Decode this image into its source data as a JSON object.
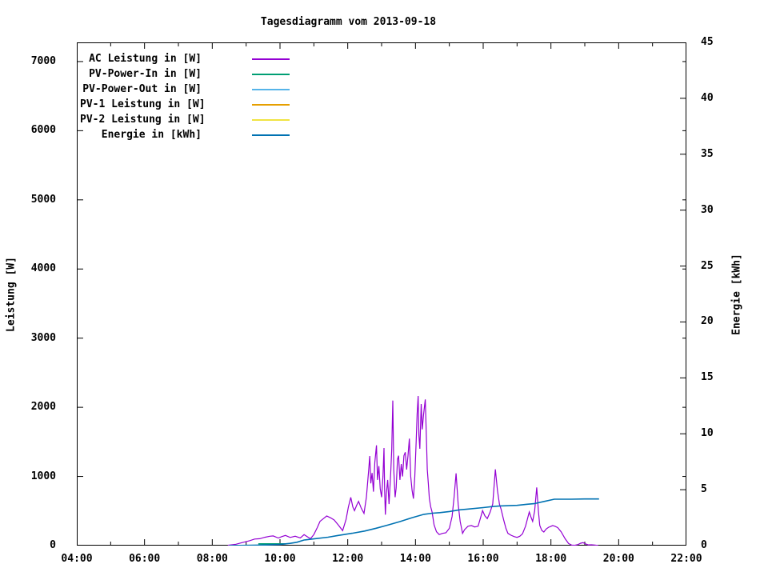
{
  "title": "Tagesdiagramm vom 2013-09-18",
  "axes": {
    "ylabel": "Leistung [W]",
    "y2label": "Energie [kWh]",
    "y_ticks": [
      0,
      1000,
      2000,
      3000,
      4000,
      5000,
      6000,
      7000
    ],
    "y_max": 7277,
    "y2_ticks": [
      0,
      5,
      10,
      15,
      20,
      25,
      30,
      35,
      40,
      45
    ],
    "y2_max": 45,
    "x_min": 4,
    "x_max": 22,
    "x_minor_step": 1,
    "x_tick_hours": [
      4,
      6,
      8,
      10,
      12,
      14,
      16,
      18,
      20,
      22
    ],
    "x_tick_labels": [
      "04:00",
      "06:00",
      "08:00",
      "10:00",
      "12:00",
      "14:00",
      "16:00",
      "18:00",
      "20:00",
      "22:00"
    ]
  },
  "legend": [
    {
      "label": "AC Leistung in [W]",
      "color": "#9400d3"
    },
    {
      "label": "PV-Power-In in [W]",
      "color": "#009e73"
    },
    {
      "label": "PV-Power-Out in [W]",
      "color": "#56b4e9"
    },
    {
      "label": "PV-1 Leistung in [W]",
      "color": "#e69f00"
    },
    {
      "label": "PV-2 Leistung in [W]",
      "color": "#f0e442"
    },
    {
      "label": "Energie in [kWh]",
      "color": "#0072b2"
    }
  ],
  "chart_data": {
    "type": "line",
    "title": "Tagesdiagramm vom 2013-09-18",
    "xlabel": "",
    "ylabel": "Leistung [W]",
    "y2label": "Energie [kWh]",
    "x_unit": "hour-of-day",
    "x_range": [
      4,
      22
    ],
    "y_range": [
      0,
      7277
    ],
    "y2_range": [
      0,
      45
    ],
    "grid": false,
    "legend_position": "top-left-inside",
    "series": [
      {
        "name": "PV-Power-In in [W]",
        "color": "#009e73",
        "axis": "y",
        "width": 1.6,
        "points": [
          [
            9.36,
            25
          ],
          [
            10.17,
            25
          ]
        ]
      },
      {
        "name": "AC Leistung in [W]",
        "color": "#9400d3",
        "axis": "y",
        "width": 1.2,
        "points": [
          [
            8.46,
            5
          ],
          [
            8.7,
            20
          ],
          [
            8.9,
            45
          ],
          [
            9.1,
            70
          ],
          [
            9.25,
            95
          ],
          [
            9.4,
            100
          ],
          [
            9.55,
            120
          ],
          [
            9.7,
            135
          ],
          [
            9.8,
            140
          ],
          [
            9.95,
            110
          ],
          [
            10.05,
            130
          ],
          [
            10.16,
            147
          ],
          [
            10.3,
            118
          ],
          [
            10.45,
            135
          ],
          [
            10.6,
            110
          ],
          [
            10.71,
            158
          ],
          [
            10.8,
            130
          ],
          [
            10.9,
            100
          ],
          [
            11.0,
            160
          ],
          [
            11.1,
            260
          ],
          [
            11.18,
            350
          ],
          [
            11.28,
            390
          ],
          [
            11.38,
            428
          ],
          [
            11.5,
            400
          ],
          [
            11.6,
            370
          ],
          [
            11.72,
            300
          ],
          [
            11.85,
            216
          ],
          [
            11.95,
            380
          ],
          [
            12.02,
            560
          ],
          [
            12.09,
            698
          ],
          [
            12.15,
            560
          ],
          [
            12.2,
            505
          ],
          [
            12.26,
            580
          ],
          [
            12.32,
            640
          ],
          [
            12.4,
            540
          ],
          [
            12.48,
            466
          ],
          [
            12.55,
            700
          ],
          [
            12.62,
            1100
          ],
          [
            12.65,
            1296
          ],
          [
            12.68,
            900
          ],
          [
            12.72,
            1050
          ],
          [
            12.76,
            780
          ],
          [
            12.8,
            1200
          ],
          [
            12.85,
            1450
          ],
          [
            12.88,
            950
          ],
          [
            12.92,
            1150
          ],
          [
            12.96,
            820
          ],
          [
            13.0,
            700
          ],
          [
            13.04,
            1000
          ],
          [
            13.07,
            1412
          ],
          [
            13.09,
            800
          ],
          [
            13.11,
            448
          ],
          [
            13.14,
            750
          ],
          [
            13.18,
            950
          ],
          [
            13.22,
            600
          ],
          [
            13.27,
            1050
          ],
          [
            13.3,
            1400
          ],
          [
            13.33,
            2098
          ],
          [
            13.36,
            1100
          ],
          [
            13.4,
            700
          ],
          [
            13.43,
            833
          ],
          [
            13.47,
            1250
          ],
          [
            13.5,
            1300
          ],
          [
            13.54,
            950
          ],
          [
            13.58,
            1180
          ],
          [
            13.62,
            1000
          ],
          [
            13.66,
            1300
          ],
          [
            13.7,
            1350
          ],
          [
            13.74,
            1100
          ],
          [
            13.78,
            1300
          ],
          [
            13.82,
            1547
          ],
          [
            13.86,
            1000
          ],
          [
            13.9,
            800
          ],
          [
            13.94,
            679
          ],
          [
            13.98,
            1000
          ],
          [
            14.02,
            1500
          ],
          [
            14.05,
            1900
          ],
          [
            14.08,
            2164
          ],
          [
            14.1,
            1600
          ],
          [
            14.13,
            1400
          ],
          [
            14.17,
            2048
          ],
          [
            14.2,
            1681
          ],
          [
            14.24,
            1900
          ],
          [
            14.29,
            2114
          ],
          [
            14.32,
            1600
          ],
          [
            14.35,
            1100
          ],
          [
            14.38,
            900
          ],
          [
            14.41,
            679
          ],
          [
            14.45,
            560
          ],
          [
            14.49,
            486
          ],
          [
            14.55,
            300
          ],
          [
            14.62,
            200
          ],
          [
            14.7,
            160
          ],
          [
            14.8,
            177
          ],
          [
            14.9,
            185
          ],
          [
            15.0,
            250
          ],
          [
            15.08,
            420
          ],
          [
            15.14,
            700
          ],
          [
            15.2,
            1045
          ],
          [
            15.26,
            600
          ],
          [
            15.32,
            350
          ],
          [
            15.39,
            177
          ],
          [
            15.45,
            230
          ],
          [
            15.55,
            280
          ],
          [
            15.65,
            290
          ],
          [
            15.75,
            270
          ],
          [
            15.85,
            280
          ],
          [
            15.92,
            400
          ],
          [
            15.98,
            505
          ],
          [
            16.05,
            430
          ],
          [
            16.12,
            390
          ],
          [
            16.2,
            480
          ],
          [
            16.28,
            600
          ],
          [
            16.36,
            1103
          ],
          [
            16.42,
            800
          ],
          [
            16.48,
            600
          ],
          [
            16.53,
            524
          ],
          [
            16.6,
            380
          ],
          [
            16.67,
            250
          ],
          [
            16.73,
            177
          ],
          [
            16.82,
            150
          ],
          [
            16.92,
            130
          ],
          [
            17.0,
            119
          ],
          [
            17.08,
            135
          ],
          [
            17.16,
            170
          ],
          [
            17.25,
            280
          ],
          [
            17.36,
            486
          ],
          [
            17.42,
            400
          ],
          [
            17.46,
            351
          ],
          [
            17.52,
            500
          ],
          [
            17.58,
            841
          ],
          [
            17.63,
            500
          ],
          [
            17.67,
            293
          ],
          [
            17.73,
            220
          ],
          [
            17.79,
            197
          ],
          [
            17.86,
            240
          ],
          [
            17.93,
            265
          ],
          [
            17.98,
            274
          ],
          [
            18.05,
            290
          ],
          [
            18.12,
            280
          ],
          [
            18.2,
            260
          ],
          [
            18.3,
            200
          ],
          [
            18.42,
            100
          ],
          [
            18.52,
            30
          ],
          [
            18.61,
            8
          ],
          [
            18.7,
            5
          ],
          [
            18.8,
            15
          ],
          [
            18.88,
            35
          ],
          [
            18.95,
            43
          ],
          [
            19.02,
            25
          ],
          [
            19.1,
            10
          ],
          [
            19.2,
            12
          ],
          [
            19.3,
            8
          ],
          [
            19.4,
            2
          ]
        ]
      },
      {
        "name": "Energie in [kWh]",
        "color": "#0072b2",
        "axis": "y2",
        "width": 1.6,
        "points": [
          [
            8.5,
            0
          ],
          [
            9.0,
            0.02
          ],
          [
            9.5,
            0.05
          ],
          [
            10.0,
            0.1
          ],
          [
            10.3,
            0.2
          ],
          [
            10.5,
            0.3
          ],
          [
            10.71,
            0.5
          ],
          [
            11.0,
            0.6
          ],
          [
            11.42,
            0.75
          ],
          [
            11.7,
            0.9
          ],
          [
            12.13,
            1.1
          ],
          [
            12.5,
            1.3
          ],
          [
            12.84,
            1.55
          ],
          [
            13.2,
            1.85
          ],
          [
            13.55,
            2.15
          ],
          [
            13.9,
            2.5
          ],
          [
            14.25,
            2.8
          ],
          [
            14.5,
            2.9
          ],
          [
            14.72,
            2.95
          ],
          [
            15.0,
            3.05
          ],
          [
            15.3,
            3.2
          ],
          [
            15.5,
            3.25
          ],
          [
            16.0,
            3.4
          ],
          [
            16.3,
            3.5
          ],
          [
            16.5,
            3.55
          ],
          [
            17.0,
            3.6
          ],
          [
            17.3,
            3.7
          ],
          [
            17.5,
            3.75
          ],
          [
            17.8,
            3.95
          ],
          [
            18.1,
            4.15
          ],
          [
            18.6,
            4.15
          ],
          [
            19.0,
            4.17
          ],
          [
            19.42,
            4.17
          ]
        ]
      }
    ]
  }
}
